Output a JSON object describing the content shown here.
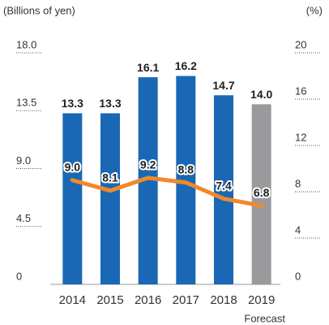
{
  "chart_data": {
    "type": "bar_line",
    "y_label": "(Billions of yen)",
    "y2_label": "(%)",
    "categories": [
      "2014",
      "2015",
      "2016",
      "2017",
      "2018",
      "2019"
    ],
    "annotation": "Forecast",
    "series": [
      {
        "type": "bar",
        "axis": "y",
        "color": "#1a68b5",
        "colors": [
          "#1a68b5",
          "#1a68b5",
          "#1a68b5",
          "#1a68b5",
          "#1a68b5",
          "#9a9a9c"
        ],
        "values": [
          13.3,
          13.3,
          16.1,
          16.2,
          14.7,
          14.0
        ],
        "value_labels": [
          "13.3",
          "13.3",
          "16.1",
          "16.2",
          "14.7",
          "14.0"
        ]
      },
      {
        "type": "line",
        "axis": "y2",
        "color": "#f0892a",
        "values": [
          9.0,
          8.1,
          9.2,
          8.8,
          7.4,
          6.8
        ],
        "value_labels": [
          "9.0",
          "8.1",
          "9.2",
          "8.8",
          "7.4",
          "6.8"
        ]
      }
    ],
    "ylim": [
      0,
      18
    ],
    "yticks": [
      0,
      4.5,
      {
        "value": 9,
        "label": "9.0"
      },
      13.5,
      {
        "value": 18,
        "label": "18.0"
      }
    ],
    "y2lim": [
      0,
      20
    ],
    "y2ticks": [
      0,
      4,
      8,
      12,
      16,
      20
    ]
  }
}
